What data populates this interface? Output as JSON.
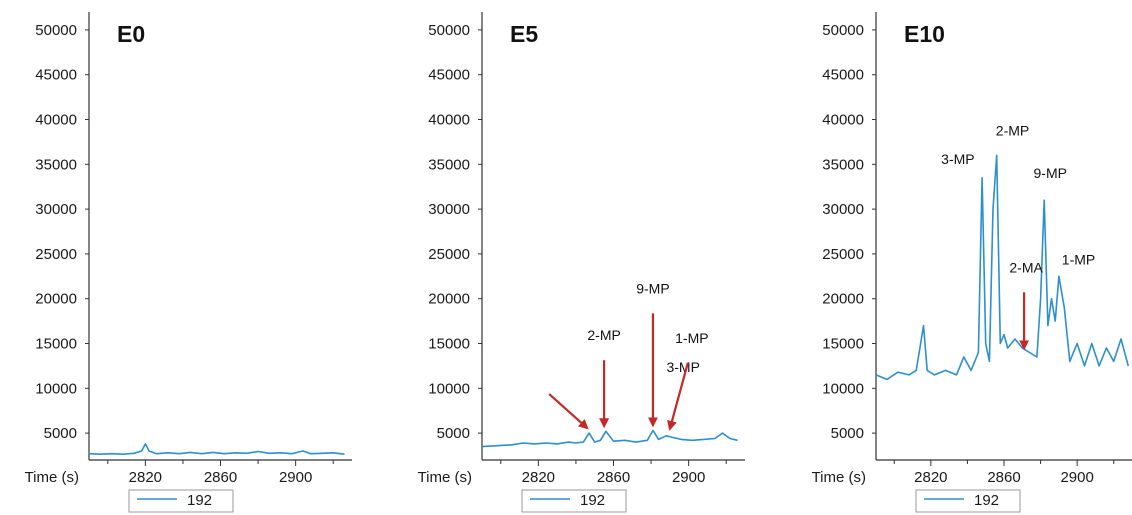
{
  "chart_data": [
    {
      "type": "line",
      "title": "E0",
      "xlabel": "Time (s)",
      "ylabel": "",
      "xlim": [
        2790,
        2930
      ],
      "ylim": [
        2000,
        52000
      ],
      "xticks": [
        2820,
        2860,
        2900
      ],
      "yticks": [
        5000,
        10000,
        15000,
        20000,
        25000,
        30000,
        35000,
        40000,
        45000,
        50000
      ],
      "color": "#2b8fd0",
      "legend": "192",
      "series": [
        {
          "name": "192",
          "x": [
            2790,
            2796,
            2802,
            2808,
            2814,
            2818,
            2820,
            2822,
            2826,
            2832,
            2838,
            2844,
            2850,
            2856,
            2862,
            2868,
            2874,
            2880,
            2886,
            2892,
            2898,
            2902,
            2904,
            2908,
            2914,
            2920,
            2926
          ],
          "y": [
            2700,
            2650,
            2700,
            2650,
            2750,
            3000,
            3800,
            3000,
            2700,
            2800,
            2700,
            2850,
            2700,
            2850,
            2700,
            2800,
            2750,
            2950,
            2750,
            2800,
            2700,
            2900,
            3000,
            2700,
            2750,
            2800,
            2650
          ]
        }
      ],
      "annotations": []
    },
    {
      "type": "line",
      "title": "E5",
      "xlabel": "Time (s)",
      "ylabel": "",
      "xlim": [
        2790,
        2930
      ],
      "ylim": [
        2000,
        52000
      ],
      "xticks": [
        2820,
        2860,
        2900
      ],
      "yticks": [
        5000,
        10000,
        15000,
        20000,
        25000,
        30000,
        35000,
        40000,
        45000,
        50000
      ],
      "color": "#2b8fd0",
      "legend": "192",
      "series": [
        {
          "name": "192",
          "x": [
            2790,
            2798,
            2806,
            2812,
            2818,
            2824,
            2830,
            2836,
            2840,
            2844,
            2847,
            2850,
            2853,
            2856,
            2860,
            2866,
            2872,
            2878,
            2881,
            2884,
            2888,
            2892,
            2896,
            2902,
            2908,
            2914,
            2918,
            2922,
            2926
          ],
          "y": [
            3500,
            3600,
            3700,
            3900,
            3800,
            3900,
            3800,
            4000,
            3900,
            4000,
            5000,
            4000,
            4200,
            5200,
            4100,
            4200,
            4000,
            4200,
            5300,
            4300,
            4700,
            4500,
            4300,
            4200,
            4300,
            4400,
            5000,
            4400,
            4200
          ]
        }
      ],
      "annotations": [
        {
          "label": "3-MP",
          "at": [
            2846,
            4900
          ]
        },
        {
          "label": "2-MP",
          "at": [
            2855,
            5100
          ]
        },
        {
          "label": "9-MP",
          "at": [
            2881,
            5200
          ]
        },
        {
          "label": "1-MP",
          "at": [
            2890,
            4800
          ]
        }
      ]
    },
    {
      "type": "line",
      "title": "E10",
      "xlabel": "Time (s)",
      "ylabel": "",
      "xlim": [
        2790,
        2930
      ],
      "ylim": [
        2000,
        52000
      ],
      "xticks": [
        2820,
        2860,
        2900
      ],
      "yticks": [
        5000,
        10000,
        15000,
        20000,
        25000,
        30000,
        35000,
        40000,
        45000,
        50000
      ],
      "color": "#2b8fd0",
      "legend": "192",
      "series": [
        {
          "name": "192",
          "x": [
            2790,
            2796,
            2802,
            2808,
            2812,
            2814,
            2816,
            2818,
            2822,
            2828,
            2834,
            2838,
            2842,
            2846,
            2848,
            2850,
            2852,
            2854,
            2856,
            2858,
            2860,
            2862,
            2866,
            2870,
            2874,
            2878,
            2880,
            2882,
            2884,
            2886,
            2888,
            2890,
            2893,
            2896,
            2900,
            2904,
            2908,
            2912,
            2916,
            2920,
            2924,
            2928
          ],
          "y": [
            11500,
            11000,
            11800,
            11500,
            12000,
            14500,
            17000,
            12000,
            11500,
            12000,
            11500,
            13500,
            12000,
            14000,
            33500,
            15000,
            13000,
            30000,
            36000,
            15000,
            16000,
            14500,
            15500,
            14500,
            14000,
            13500,
            20000,
            31000,
            17000,
            20000,
            17500,
            22500,
            19000,
            13000,
            15000,
            12500,
            15000,
            12500,
            14500,
            13000,
            15500,
            12500
          ]
        }
      ],
      "annotations": [
        {
          "label": "3-MP",
          "at": [
            2849,
            33500
          ]
        },
        {
          "label": "2-MP",
          "at": [
            2857,
            36000
          ]
        },
        {
          "label": "9-MP",
          "at": [
            2882,
            31000
          ]
        },
        {
          "label": "2-MA",
          "at": [
            2871,
            13800
          ]
        },
        {
          "label": "1-MP",
          "at": [
            2892,
            22500
          ]
        }
      ]
    }
  ]
}
